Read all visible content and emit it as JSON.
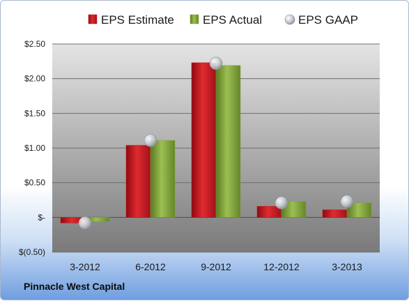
{
  "company_label": "Pinnacle West Capital",
  "chart_data": {
    "type": "bar",
    "categories": [
      "3-2012",
      "6-2012",
      "9-2012",
      "12-2012",
      "3-2013"
    ],
    "series": [
      {
        "name": "EPS Estimate",
        "kind": "bar",
        "color": "#c8161d",
        "values": [
          -0.08,
          1.04,
          2.23,
          0.16,
          0.11
        ]
      },
      {
        "name": "EPS Actual",
        "kind": "bar",
        "color": "#80a23c",
        "values": [
          -0.06,
          1.11,
          2.19,
          0.23,
          0.21
        ]
      },
      {
        "name": "EPS GAAP",
        "kind": "marker",
        "color": "#b8bcc6",
        "values": [
          -0.08,
          1.11,
          2.22,
          0.21,
          0.23
        ]
      }
    ],
    "yticks": [
      {
        "value": 2.5,
        "label": "$2.50"
      },
      {
        "value": 2.0,
        "label": "$2.00"
      },
      {
        "value": 1.5,
        "label": "$1.50"
      },
      {
        "value": 1.0,
        "label": "$1.00"
      },
      {
        "value": 0.5,
        "label": "$0.50"
      },
      {
        "value": 0.0,
        "label": "$-"
      },
      {
        "value": -0.5,
        "label": "$(0.50)"
      }
    ],
    "ylim": [
      -0.5,
      2.5
    ],
    "grid": true,
    "legend_position": "top"
  }
}
